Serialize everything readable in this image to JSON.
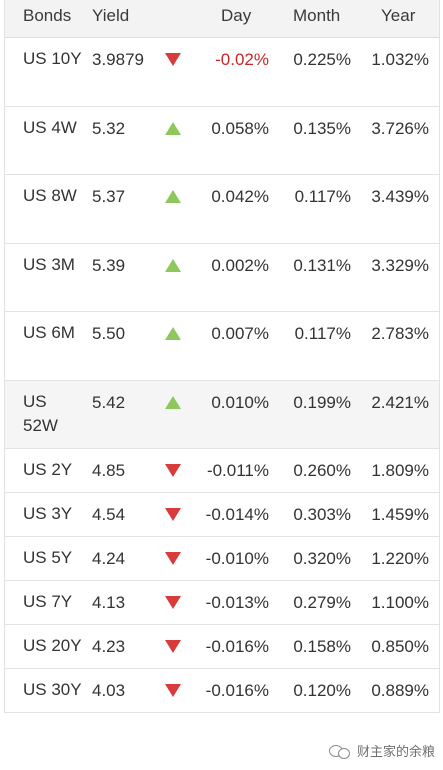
{
  "header": {
    "bonds": "Bonds",
    "yield": "Yield",
    "day": "Day",
    "month": "Month",
    "year": "Year"
  },
  "rows": [
    {
      "bond": "US 10Y",
      "yield": "3.9879",
      "direction": "down",
      "day": "-0.02%",
      "month": "0.225%",
      "year": "1.032%"
    },
    {
      "bond": "US 4W",
      "yield": "5.32",
      "direction": "up",
      "day": "0.058%",
      "month": "0.135%",
      "year": "3.726%"
    },
    {
      "bond": "US 8W",
      "yield": "5.37",
      "direction": "up",
      "day": "0.042%",
      "month": "0.117%",
      "year": "3.439%"
    },
    {
      "bond": "US 3M",
      "yield": "5.39",
      "direction": "up",
      "day": "0.002%",
      "month": "0.131%",
      "year": "3.329%"
    },
    {
      "bond": "US 6M",
      "yield": "5.50",
      "direction": "up",
      "day": "0.007%",
      "month": "0.117%",
      "year": "2.783%"
    },
    {
      "bond": "US 52W",
      "yield": "5.42",
      "direction": "up",
      "day": "0.010%",
      "month": "0.199%",
      "year": "2.421%"
    },
    {
      "bond": "US 2Y",
      "yield": "4.85",
      "direction": "down",
      "day": "-0.011%",
      "month": "0.260%",
      "year": "1.809%"
    },
    {
      "bond": "US 3Y",
      "yield": "4.54",
      "direction": "down",
      "day": "-0.014%",
      "month": "0.303%",
      "year": "1.459%"
    },
    {
      "bond": "US 5Y",
      "yield": "4.24",
      "direction": "down",
      "day": "-0.010%",
      "month": "0.320%",
      "year": "1.220%"
    },
    {
      "bond": "US 7Y",
      "yield": "4.13",
      "direction": "down",
      "day": "-0.013%",
      "month": "0.279%",
      "year": "1.100%"
    },
    {
      "bond": "US 20Y",
      "yield": "4.23",
      "direction": "down",
      "day": "-0.016%",
      "month": "0.158%",
      "year": "0.850%"
    },
    {
      "bond": "US 30Y",
      "yield": "4.03",
      "direction": "down",
      "day": "-0.016%",
      "month": "0.120%",
      "year": "0.889%"
    }
  ],
  "colors": {
    "up": "#8ec85d",
    "down": "#d83b3b",
    "negative_text": "#c62828"
  },
  "watermark": {
    "text": "财主家的余粮",
    "icon": "wechat-icon"
  }
}
